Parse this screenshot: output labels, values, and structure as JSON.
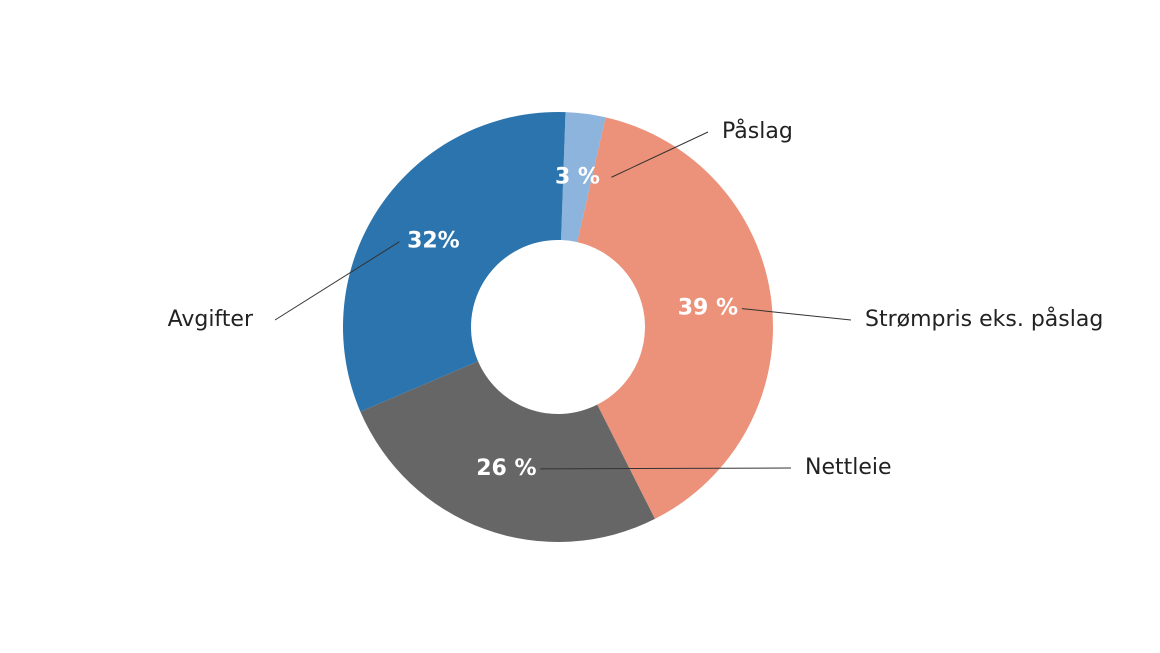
{
  "chart_data": {
    "type": "donut",
    "categories": [
      "Påslag",
      "Strømpris eks. påslag",
      "Nettleie",
      "Avgifter"
    ],
    "values": [
      3,
      39,
      26,
      32
    ],
    "value_labels": [
      "3 %",
      "39 %",
      "26 %",
      "32%"
    ],
    "colors": [
      "#8db4dc",
      "#ec917a",
      "#666666",
      "#2b74ad"
    ]
  }
}
